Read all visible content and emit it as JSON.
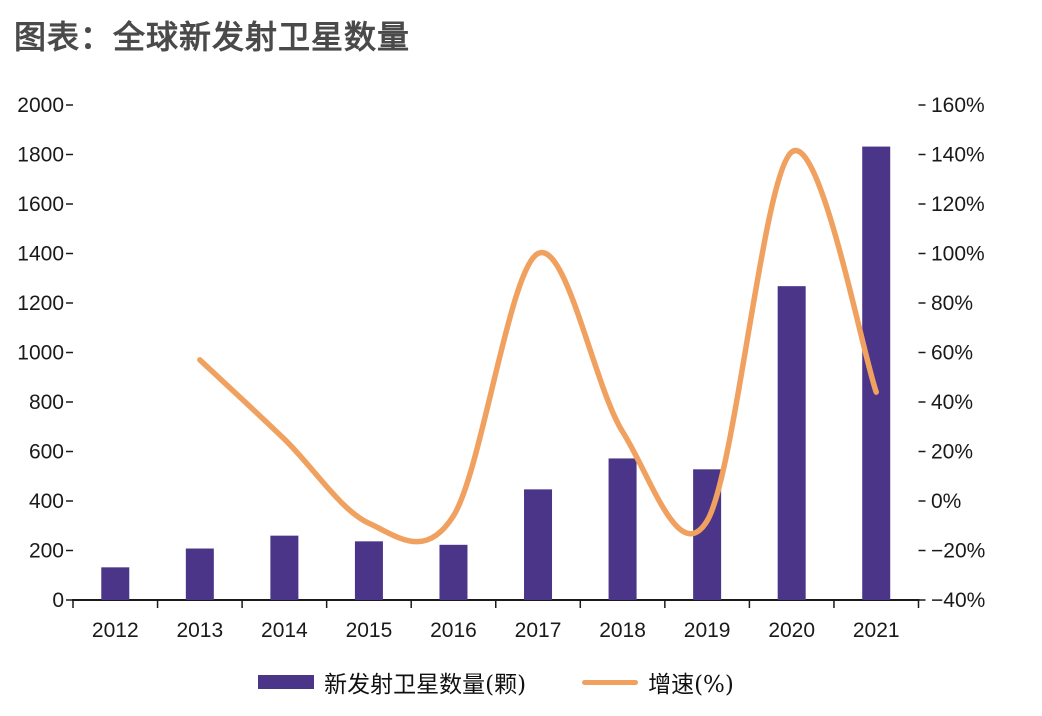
{
  "title": "图表：全球新发射卫星数量",
  "chart_data": {
    "type": "combo bar+line, dual axis",
    "categories": [
      "2012",
      "2013",
      "2014",
      "2015",
      "2016",
      "2017",
      "2018",
      "2019",
      "2020",
      "2021"
    ],
    "series": [
      {
        "name": "新发射卫星数量(颗)",
        "type": "bar",
        "axis": "left",
        "values": [
          132,
          208,
          260,
          237,
          223,
          447,
          572,
          528,
          1268,
          1832
        ]
      },
      {
        "name": "增速(%)",
        "type": "line",
        "axis": "right",
        "smoothed": true,
        "values": [
          null,
          57,
          25,
          -9,
          -6,
          100,
          28,
          -8,
          141,
          44
        ]
      }
    ],
    "left_axis": {
      "min": 0,
      "max": 2000,
      "step": 200,
      "labels": [
        "0",
        "200",
        "400",
        "600",
        "800",
        "1000",
        "1200",
        "1400",
        "1600",
        "1800",
        "2000"
      ]
    },
    "right_axis": {
      "min": -40,
      "max": 160,
      "step": 20,
      "labels": [
        "−40%",
        "−20%",
        "0%",
        "20%",
        "40%",
        "60%",
        "80%",
        "100%",
        "120%",
        "140%",
        "160%"
      ]
    },
    "legend": {
      "position": "bottom",
      "items": [
        "新发射卫星数量(颗)",
        "增速(%)"
      ]
    },
    "grid": false,
    "colors": {
      "bar": "#4A3588",
      "line": "#F0A160",
      "axis": "#1a1a1a",
      "title": "#4A4A4A"
    }
  }
}
